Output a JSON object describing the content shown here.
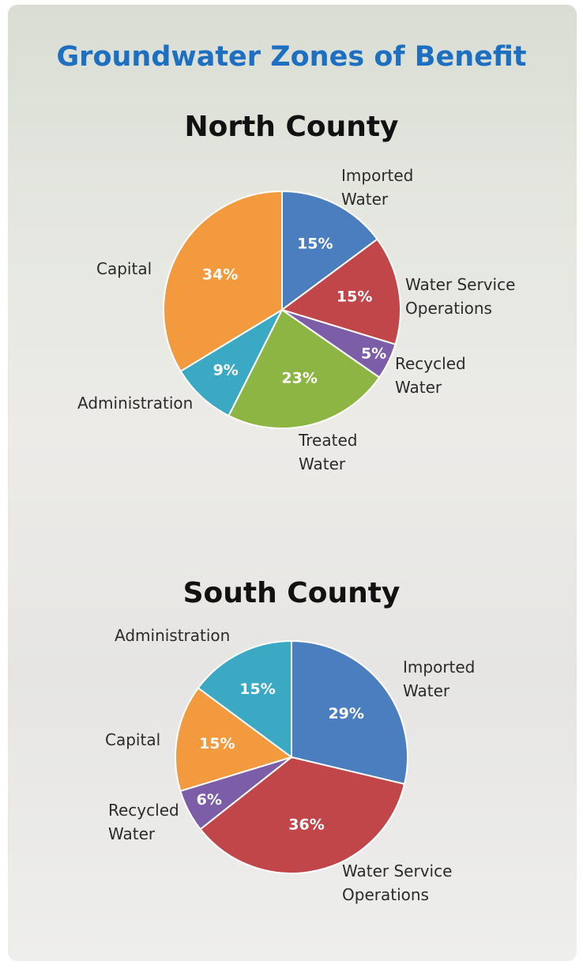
{
  "title": "Groundwater Zones of Benefit",
  "chart_data": [
    {
      "type": "pie",
      "title": "North County",
      "categories": [
        "Imported Water",
        "Water Service Operations",
        "Recycled Water",
        "Treated Water",
        "Administration",
        "Capital"
      ],
      "values": [
        15,
        15,
        5,
        23,
        9,
        34
      ],
      "value_labels": [
        "15%",
        "15%",
        "5%",
        "23%",
        "9%",
        "34%"
      ],
      "colors": [
        "#4a7ebf",
        "#c0464a",
        "#7b5ea7",
        "#8db543",
        "#3ba8c4",
        "#f39a3f"
      ]
    },
    {
      "type": "pie",
      "title": "South County",
      "categories": [
        "Imported Water",
        "Water Service Operations",
        "Recycled Water",
        "Capital",
        "Administration"
      ],
      "values": [
        29,
        36,
        6,
        15,
        15
      ],
      "value_labels": [
        "29%",
        "36%",
        "6%",
        "15%",
        "15%"
      ],
      "colors": [
        "#4a7ebf",
        "#c0464a",
        "#7b5ea7",
        "#f39a3f",
        "#3ba8c4"
      ]
    }
  ]
}
